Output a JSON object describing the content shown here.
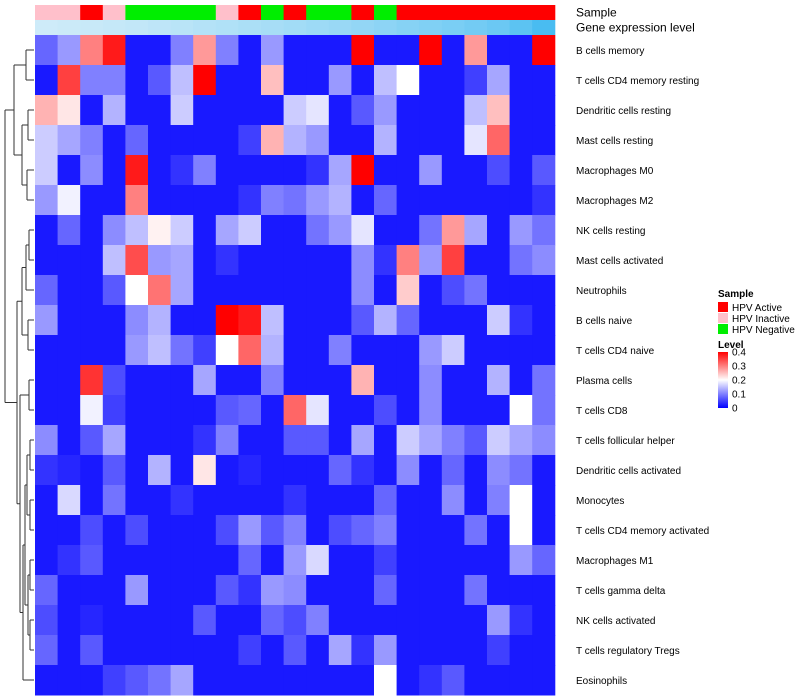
{
  "chart_data": {
    "type": "heatmap",
    "annotation_rows": [
      {
        "label": "Sample",
        "values": [
          "HPV Inactive",
          "HPV Inactive",
          "HPV Active",
          "HPV Inactive",
          "HPV Negative",
          "HPV Negative",
          "HPV Negative",
          "HPV Negative",
          "HPV Inactive",
          "HPV Active",
          "HPV Negative",
          "HPV Active",
          "HPV Negative",
          "HPV Negative",
          "HPV Active",
          "HPV Negative",
          "HPV Active",
          "HPV Active",
          "HPV Active",
          "HPV Active",
          "HPV Active",
          "HPV Active",
          "HPV Active"
        ]
      },
      {
        "label": "Gene expression level",
        "values": [
          0.05,
          0.07,
          0.09,
          0.11,
          0.13,
          0.16,
          0.19,
          0.22,
          0.25,
          0.28,
          0.31,
          0.34,
          0.37,
          0.4,
          0.44,
          0.48,
          0.52,
          0.56,
          0.6,
          0.65,
          0.7,
          0.8,
          0.92
        ]
      }
    ],
    "rows": [
      "B cells memory",
      "T cells CD4 memory resting",
      "Dendritic cells resting",
      "Mast cells resting",
      "Macrophages M0",
      "Macrophages M2",
      "NK cells resting",
      "Mast cells activated",
      "Neutrophils",
      "B cells naive",
      "T cells CD4 naive",
      "Plasma cells",
      "T cells CD8",
      "T cells follicular helper",
      "Dendritic cells activated",
      "Monocytes",
      "T cells CD4 memory activated",
      "Macrophages M1",
      "T cells gamma delta",
      "NK cells activated",
      "T cells regulatory  Tregs",
      "Eosinophils"
    ],
    "values": [
      [
        0.08,
        0.12,
        0.3,
        0.38,
        0.02,
        0.02,
        0.1,
        0.28,
        0.1,
        0.02,
        0.12,
        0.02,
        0.02,
        0.02,
        0.4,
        0.02,
        0.02,
        0.4,
        0.02,
        0.28,
        0.02,
        0.02,
        0.4
      ],
      [
        0.02,
        0.35,
        0.1,
        0.1,
        0.02,
        0.07,
        0.15,
        0.4,
        0.02,
        0.02,
        0.25,
        0.02,
        0.02,
        0.12,
        0.02,
        0.15,
        0.2,
        0.02,
        0.02,
        0.05,
        0.13,
        0.02,
        0.02
      ],
      [
        0.26,
        0.22,
        0.02,
        0.14,
        0.02,
        0.02,
        0.16,
        0.02,
        0.02,
        0.02,
        0.02,
        0.16,
        0.18,
        0.02,
        0.07,
        0.12,
        0.02,
        0.02,
        0.02,
        0.15,
        0.25,
        0.02,
        0.02
      ],
      [
        0.16,
        0.13,
        0.1,
        0.02,
        0.08,
        0.02,
        0.02,
        0.02,
        0.02,
        0.05,
        0.26,
        0.14,
        0.12,
        0.02,
        0.02,
        0.14,
        0.02,
        0.02,
        0.02,
        0.18,
        0.32,
        0.02,
        0.02
      ],
      [
        0.16,
        0.02,
        0.11,
        0.02,
        0.38,
        0.02,
        0.04,
        0.1,
        0.02,
        0.02,
        0.02,
        0.02,
        0.04,
        0.13,
        0.4,
        0.02,
        0.02,
        0.12,
        0.02,
        0.02,
        0.06,
        0.02,
        0.07
      ],
      [
        0.12,
        0.19,
        0.02,
        0.02,
        0.3,
        0.02,
        0.02,
        0.02,
        0.02,
        0.04,
        0.1,
        0.09,
        0.12,
        0.14,
        0.02,
        0.08,
        0.02,
        0.02,
        0.02,
        0.02,
        0.02,
        0.02,
        0.04
      ],
      [
        0.02,
        0.08,
        0.02,
        0.11,
        0.15,
        0.21,
        0.16,
        0.02,
        0.13,
        0.16,
        0.02,
        0.02,
        0.09,
        0.12,
        0.18,
        0.02,
        0.02,
        0.09,
        0.28,
        0.13,
        0.02,
        0.12,
        0.09
      ],
      [
        0.02,
        0.02,
        0.02,
        0.15,
        0.34,
        0.12,
        0.13,
        0.02,
        0.04,
        0.02,
        0.02,
        0.02,
        0.02,
        0.02,
        0.11,
        0.04,
        0.3,
        0.12,
        0.35,
        0.02,
        0.02,
        0.09,
        0.11
      ],
      [
        0.08,
        0.02,
        0.02,
        0.07,
        0.2,
        0.31,
        0.13,
        0.02,
        0.02,
        0.02,
        0.02,
        0.02,
        0.02,
        0.02,
        0.11,
        0.02,
        0.24,
        0.02,
        0.06,
        0.09,
        0.02,
        0.02,
        0.02
      ],
      [
        0.12,
        0.02,
        0.02,
        0.02,
        0.11,
        0.14,
        0.02,
        0.02,
        0.4,
        0.38,
        0.15,
        0.02,
        0.02,
        0.02,
        0.07,
        0.14,
        0.08,
        0.02,
        0.02,
        0.02,
        0.16,
        0.04,
        0.02
      ],
      [
        0.02,
        0.02,
        0.02,
        0.02,
        0.12,
        0.15,
        0.09,
        0.05,
        0.2,
        0.32,
        0.14,
        0.02,
        0.02,
        0.1,
        0.02,
        0.02,
        0.02,
        0.12,
        0.16,
        0.02,
        0.02,
        0.02,
        0.02
      ],
      [
        0.02,
        0.02,
        0.36,
        0.06,
        0.02,
        0.02,
        0.02,
        0.13,
        0.02,
        0.02,
        0.1,
        0.02,
        0.02,
        0.02,
        0.26,
        0.02,
        0.02,
        0.11,
        0.02,
        0.02,
        0.14,
        0.02,
        0.09
      ],
      [
        0.02,
        0.02,
        0.19,
        0.05,
        0.02,
        0.02,
        0.02,
        0.02,
        0.07,
        0.08,
        0.02,
        0.32,
        0.18,
        0.02,
        0.02,
        0.06,
        0.02,
        0.11,
        0.02,
        0.02,
        0.02,
        0.2,
        0.09
      ],
      [
        0.11,
        0.02,
        0.07,
        0.13,
        0.02,
        0.02,
        0.02,
        0.04,
        0.1,
        0.02,
        0.02,
        0.07,
        0.07,
        0.02,
        0.13,
        0.02,
        0.16,
        0.13,
        0.1,
        0.07,
        0.16,
        0.13,
        0.11
      ],
      [
        0.04,
        0.03,
        0.02,
        0.07,
        0.02,
        0.14,
        0.02,
        0.22,
        0.02,
        0.03,
        0.02,
        0.02,
        0.02,
        0.08,
        0.04,
        0.02,
        0.11,
        0.02,
        0.08,
        0.02,
        0.11,
        0.09,
        0.02
      ],
      [
        0.02,
        0.17,
        0.02,
        0.09,
        0.02,
        0.02,
        0.04,
        0.02,
        0.02,
        0.02,
        0.02,
        0.04,
        0.02,
        0.02,
        0.02,
        0.08,
        0.02,
        0.02,
        0.11,
        0.02,
        0.1,
        0.2,
        0.02
      ],
      [
        0.02,
        0.02,
        0.06,
        0.02,
        0.06,
        0.02,
        0.02,
        0.02,
        0.06,
        0.12,
        0.07,
        0.1,
        0.02,
        0.06,
        0.08,
        0.1,
        0.02,
        0.02,
        0.02,
        0.09,
        0.02,
        0.2,
        0.02
      ],
      [
        0.02,
        0.04,
        0.07,
        0.02,
        0.02,
        0.02,
        0.02,
        0.02,
        0.02,
        0.08,
        0.02,
        0.12,
        0.17,
        0.02,
        0.02,
        0.05,
        0.02,
        0.02,
        0.02,
        0.02,
        0.02,
        0.12,
        0.08
      ],
      [
        0.08,
        0.02,
        0.02,
        0.02,
        0.12,
        0.02,
        0.02,
        0.02,
        0.07,
        0.04,
        0.12,
        0.11,
        0.02,
        0.02,
        0.02,
        0.08,
        0.02,
        0.02,
        0.02,
        0.09,
        0.02,
        0.02,
        0.02
      ],
      [
        0.06,
        0.02,
        0.03,
        0.02,
        0.02,
        0.02,
        0.02,
        0.07,
        0.02,
        0.02,
        0.08,
        0.06,
        0.1,
        0.02,
        0.02,
        0.02,
        0.02,
        0.02,
        0.02,
        0.02,
        0.12,
        0.04,
        0.02
      ],
      [
        0.08,
        0.02,
        0.07,
        0.02,
        0.02,
        0.02,
        0.02,
        0.02,
        0.02,
        0.05,
        0.02,
        0.07,
        0.02,
        0.13,
        0.04,
        0.12,
        0.02,
        0.02,
        0.02,
        0.02,
        0.05,
        0.02,
        0.02
      ],
      [
        0.02,
        0.02,
        0.02,
        0.05,
        0.07,
        0.09,
        0.13,
        0.02,
        0.02,
        0.02,
        0.02,
        0.02,
        0.02,
        0.02,
        0.02,
        0.2,
        0.02,
        0.04,
        0.07,
        0.02,
        0.02,
        0.02,
        0.02
      ]
    ],
    "color_scale": {
      "min": 0,
      "max": 0.4,
      "colors": [
        "#0000ff",
        "#ffffff",
        "#ff0000"
      ]
    },
    "legends": {
      "sample": {
        "title": "Sample",
        "items": [
          {
            "label": "HPV Active",
            "color": "#ff0000"
          },
          {
            "label": "HPV Inactive",
            "color": "#ffc0cb"
          },
          {
            "label": "HPV Negative",
            "color": "#00ee00"
          }
        ]
      },
      "level": {
        "title": "Level",
        "ticks": [
          0.4,
          0.3,
          0.2,
          0.1,
          0
        ],
        "tick_labels": [
          "0.4",
          "0.3",
          "0.2",
          "0.1",
          "0"
        ]
      }
    },
    "gene_level_colors": [
      "#d6eef9",
      "#3db8f0"
    ],
    "grid": false
  }
}
